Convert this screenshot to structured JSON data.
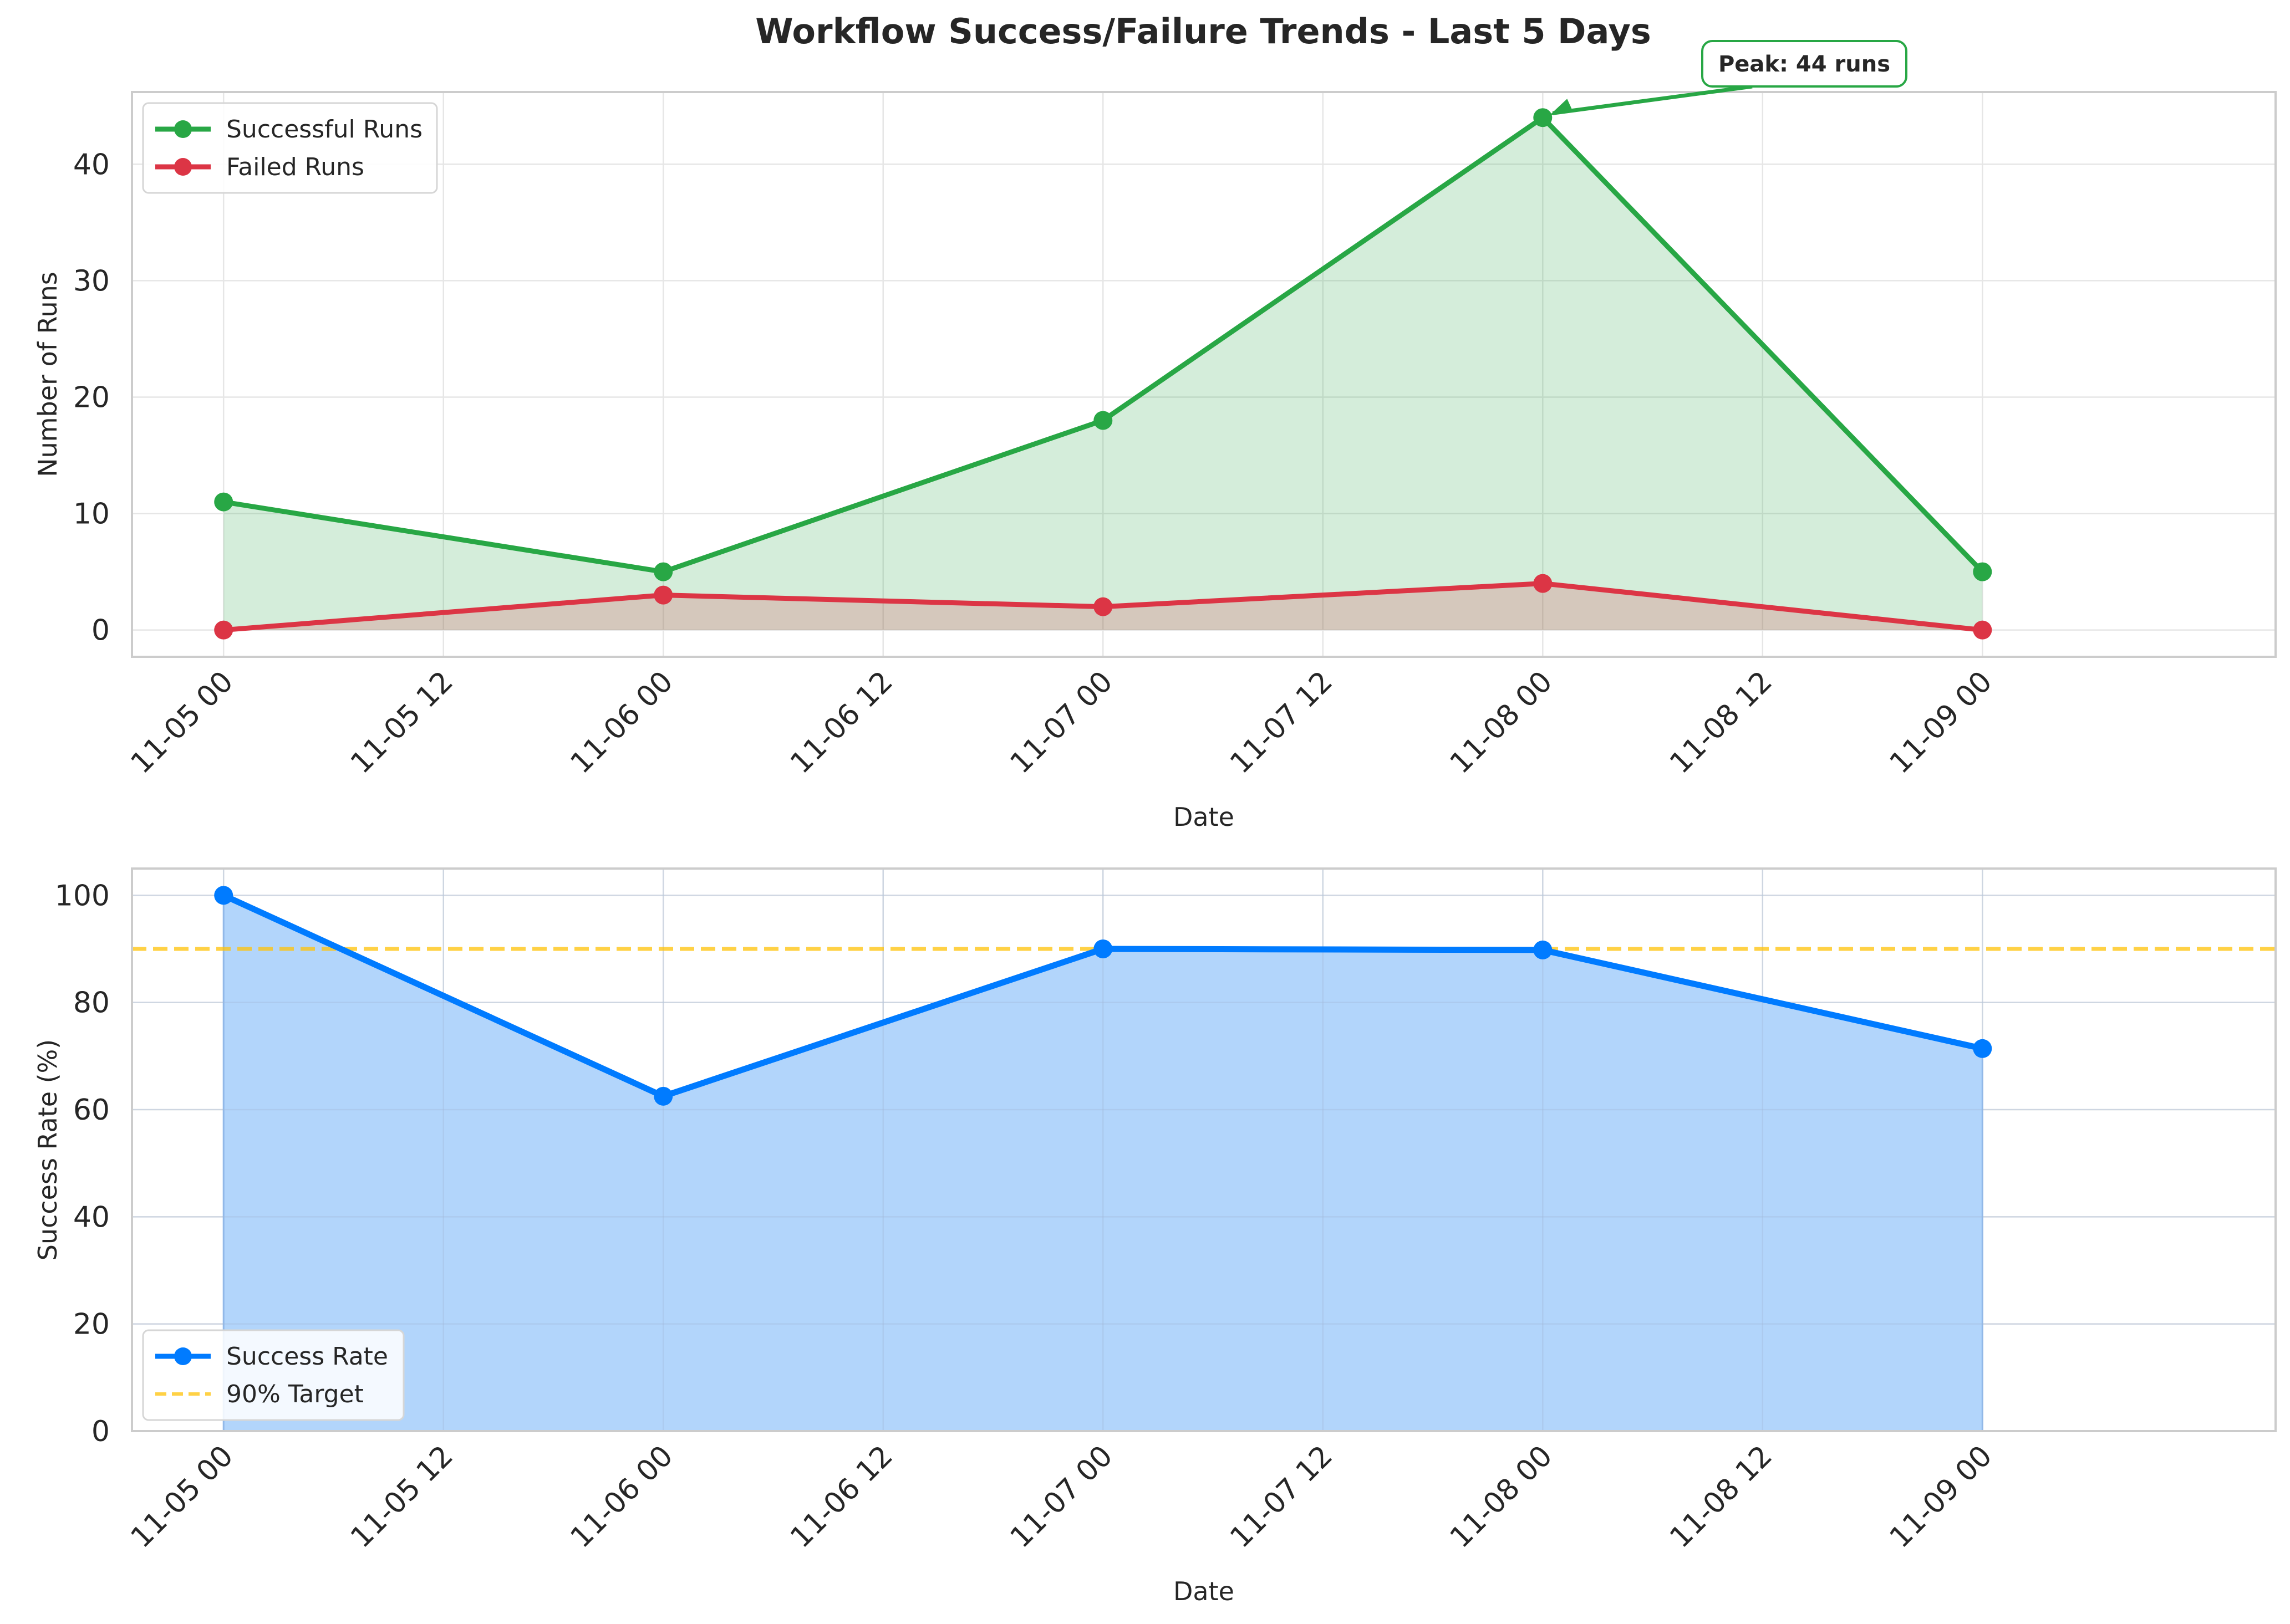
{
  "figure": {
    "title": "Workflow Success/Failure Trends - Last 5 Days"
  },
  "colors": {
    "success": "#28a745",
    "failure": "#dc3545",
    "rate": "#007bff",
    "rate_fill": "#b2d5fb",
    "target": "#ffc107",
    "grid": "#e6e6e6",
    "frame": "#cccccc",
    "text": "#262626"
  },
  "chart_data": [
    {
      "type": "line",
      "title": "",
      "xlabel": "Date",
      "ylabel": "Number of Runs",
      "x": [
        "11-05 00",
        "11-06 00",
        "11-07 00",
        "11-08 00",
        "11-09 00"
      ],
      "x_ticks": [
        "11-05 00",
        "11-05 12",
        "11-06 00",
        "11-06 12",
        "11-07 00",
        "11-07 12",
        "11-08 00",
        "11-08 12",
        "11-09 00"
      ],
      "xlim": [
        "11-04 19:00",
        "11-09 16:00"
      ],
      "ylim": [
        -2.3,
        46.2
      ],
      "y_ticks": [
        0,
        10,
        20,
        30,
        40
      ],
      "grid": true,
      "legend": "top-left",
      "series": [
        {
          "name": "Successful Runs",
          "color": "#28a745",
          "fill": true,
          "values": [
            11,
            5,
            18,
            44,
            5
          ]
        },
        {
          "name": "Failed Runs",
          "color": "#dc3545",
          "fill": true,
          "values": [
            0,
            3,
            2,
            4,
            0
          ]
        }
      ],
      "annotation": {
        "text": "Peak: 44 runs",
        "x": "11-08 00",
        "y": 44
      }
    },
    {
      "type": "area",
      "title": "",
      "xlabel": "Date",
      "ylabel": "Success Rate (%)",
      "x": [
        "11-05 00",
        "11-06 00",
        "11-07 00",
        "11-08 00",
        "11-09 00"
      ],
      "x_ticks": [
        "11-05 00",
        "11-05 12",
        "11-06 00",
        "11-06 12",
        "11-07 00",
        "11-07 12",
        "11-08 00",
        "11-08 12",
        "11-09 00"
      ],
      "xlim": [
        "11-04 19:00",
        "11-09 16:00"
      ],
      "ylim": [
        0,
        105
      ],
      "y_ticks": [
        0,
        20,
        40,
        60,
        80,
        100
      ],
      "grid": true,
      "legend": "bottom-left",
      "series": [
        {
          "name": "Success Rate",
          "color": "#007bff",
          "fill": true,
          "values": [
            100,
            62.5,
            90,
            89.8,
            71.4
          ]
        }
      ],
      "target_line": {
        "name": "90% Target",
        "value": 90,
        "color": "#ffc107"
      }
    }
  ]
}
